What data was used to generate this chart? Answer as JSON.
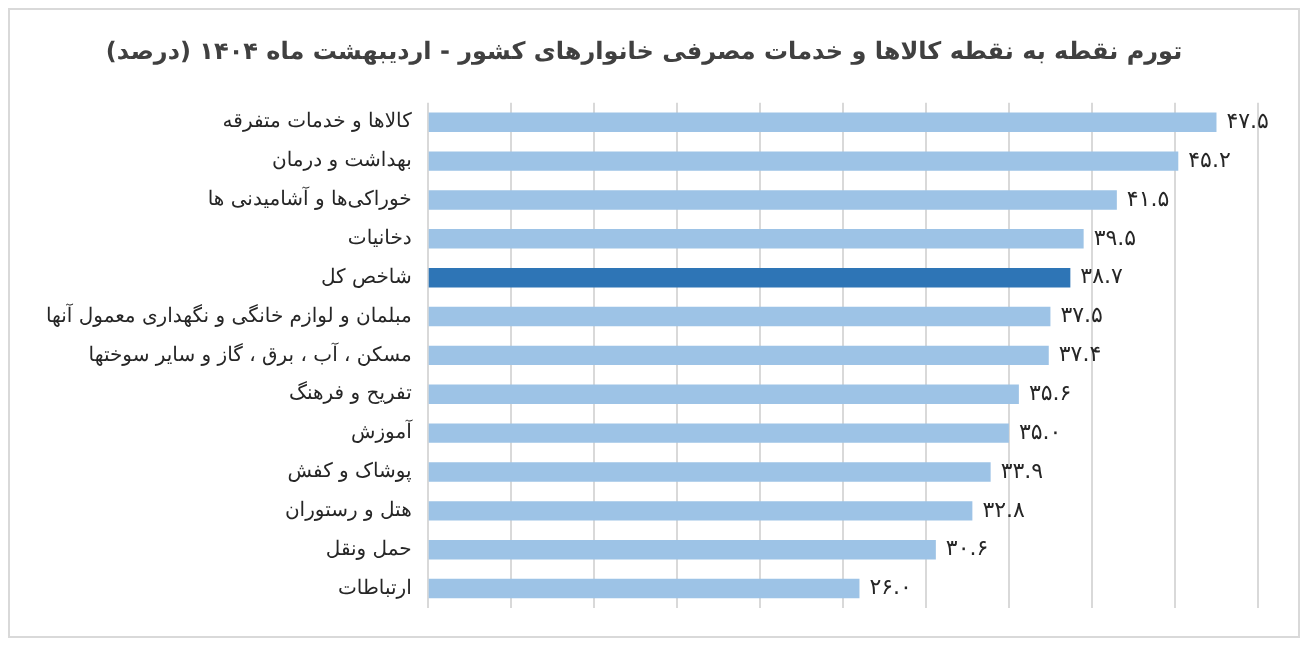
{
  "chart_data": {
    "type": "bar",
    "orientation": "horizontal",
    "title": "تورم نقطه به نقطه کالاها و خدمات مصرفی خانوارهای کشور - اردیبهشت ماه ۱۴۰۴ (درصد)",
    "categories": [
      "کالاها و خدمات متفرقه",
      "بهداشت و درمان",
      "خوراکی‌ها و آشامیدنی ها",
      "دخانیات",
      "شاخص کل",
      "مبلمان و لوازم خانگی و نگهداری معمول آنها",
      "مسکن ، آب ، برق ، گاز و سایر سوختها",
      "تفریح و فرهنگ",
      "آموزش",
      "پوشاک و کفش",
      "هتل و رستوران",
      "حمل ونقل",
      "ارتباطات"
    ],
    "values": [
      47.5,
      45.2,
      41.5,
      39.5,
      38.7,
      37.5,
      37.4,
      35.6,
      35.0,
      33.9,
      32.8,
      30.6,
      26.0
    ],
    "value_labels": [
      "۴۷.۵",
      "۴۵.۲",
      "۴۱.۵",
      "۳۹.۵",
      "۳۸.۷",
      "۳۷.۵",
      "۳۷.۴",
      "۳۵.۶",
      "۳۵.۰",
      "۳۳.۹",
      "۳۲.۸",
      "۳۰.۶",
      "۲۶.۰"
    ],
    "colors": [
      "#9dc3e6",
      "#9dc3e6",
      "#9dc3e6",
      "#9dc3e6",
      "#2e75b6",
      "#9dc3e6",
      "#9dc3e6",
      "#9dc3e6",
      "#9dc3e6",
      "#9dc3e6",
      "#9dc3e6",
      "#9dc3e6",
      "#9dc3e6"
    ],
    "xlim": [
      0,
      50
    ],
    "xticks": [
      {
        "value": 0,
        "label": null
      },
      {
        "value": 5,
        "label": null
      },
      {
        "value": 10,
        "label": null
      },
      {
        "value": 15,
        "label": null
      },
      {
        "value": 20,
        "label": null
      },
      {
        "value": 25,
        "label": null
      },
      {
        "value": 30,
        "label": null
      },
      {
        "value": 35,
        "label": null
      },
      {
        "value": 40,
        "label": null
      },
      {
        "value": 45,
        "label": null
      },
      {
        "value": 50,
        "label": null
      }
    ],
    "grid": "x",
    "tick_labels": "y"
  }
}
